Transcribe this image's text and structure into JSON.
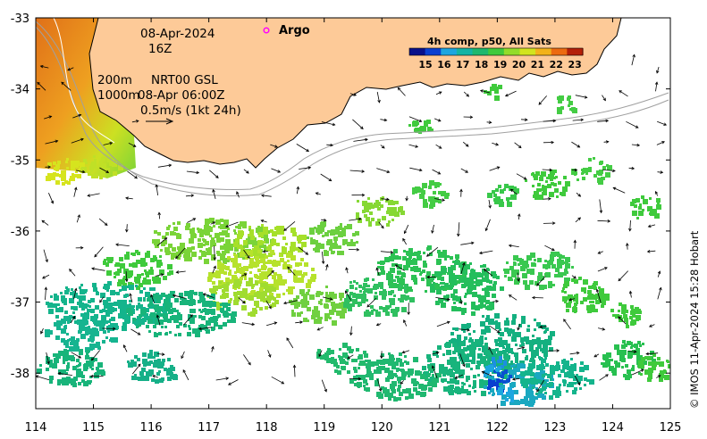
{
  "map": {
    "x_axis": {
      "ticks": [
        "114",
        "115",
        "116",
        "117",
        "118",
        "119",
        "120",
        "121",
        "122",
        "123",
        "124",
        "125"
      ],
      "range": [
        114,
        125
      ]
    },
    "y_axis": {
      "ticks": [
        "-33",
        "-34",
        "-35",
        "-36",
        "-37",
        "-38"
      ],
      "range": [
        -38.5,
        -33
      ]
    },
    "date": "08-Apr-2024",
    "time": "16Z",
    "depth_200": "200m",
    "depth_1000": "1000m",
    "current_source": "NRT00 GSL",
    "current_time": "08-Apr 06:00Z",
    "scale_label": "0.5m/s (1kt 24h)",
    "argo_label": "Argo",
    "legend": {
      "title": "4h comp, p50, All Sats",
      "ticks": [
        "15",
        "16",
        "17",
        "18",
        "19",
        "20",
        "21",
        "22",
        "23"
      ],
      "colors": [
        "#08108a",
        "#0a3fd0",
        "#1da6e0",
        "#14b4a4",
        "#1eb86e",
        "#3fca3c",
        "#92dc2a",
        "#d2e41e",
        "#f2b21a",
        "#ec6a10",
        "#b42008"
      ]
    },
    "credit": "© IMOS 11-Apr-2024 15:28 Hobart",
    "colors": {
      "land": "#fdca98",
      "coast": "#000000",
      "contour": "#a0a0a0",
      "argo": "#ff00ff"
    }
  }
}
